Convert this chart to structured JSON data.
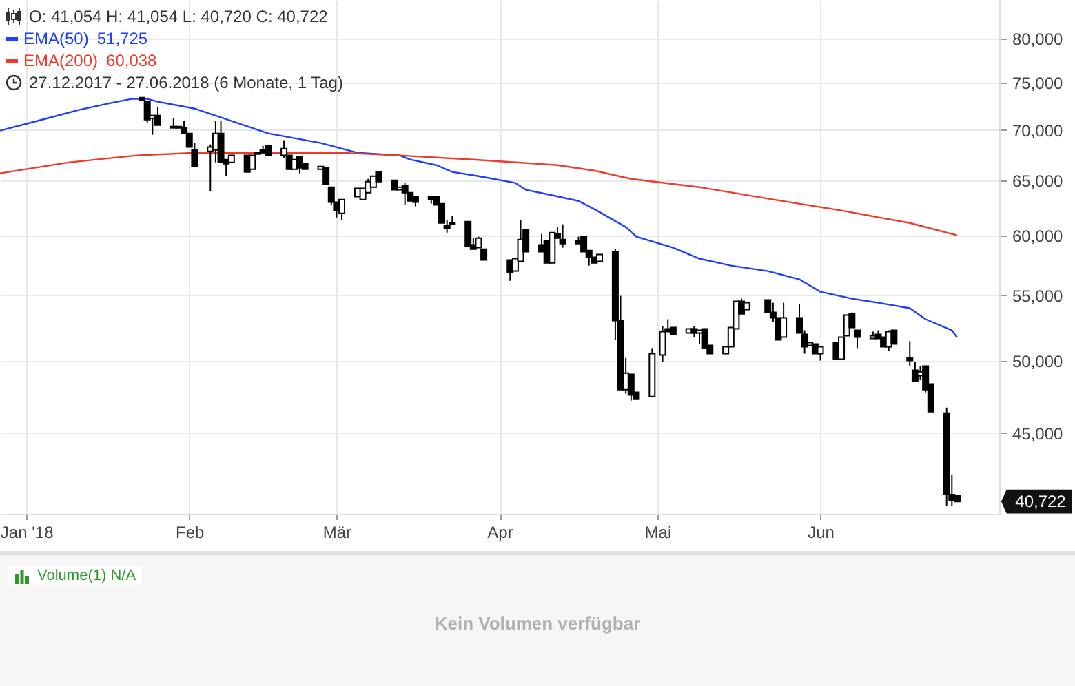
{
  "chart_data": {
    "type": "candlestick",
    "log": "y",
    "grid": true,
    "legend": "top left",
    "xlim": [
      "2017-12-27",
      "2018-07-05"
    ],
    "xticks": [
      {
        "value": "2018-01-01",
        "label": "Jan '18"
      },
      {
        "value": "2018-02-01",
        "label": "Feb"
      },
      {
        "value": "2018-03-01",
        "label": "Mär"
      },
      {
        "value": "2018-04-01",
        "label": "Apr"
      },
      {
        "value": "2018-05-01",
        "label": "Mai"
      },
      {
        "value": "2018-06-01",
        "label": "Jun"
      }
    ],
    "ylim": [
      40000,
      84600
    ],
    "yticks": [
      {
        "value": 45000,
        "label": "45,000"
      },
      {
        "value": 50000,
        "label": "50,000"
      },
      {
        "value": 55000,
        "label": "55,000"
      },
      {
        "value": 60000,
        "label": "60,000"
      },
      {
        "value": 65000,
        "label": "65,000"
      },
      {
        "value": 70000,
        "label": "70,000"
      },
      {
        "value": 75000,
        "label": "75,000"
      },
      {
        "value": 80000,
        "label": "80,000"
      }
    ],
    "x": [
      "2018-01-23",
      "2018-01-24",
      "2018-01-25",
      "2018-01-26",
      "2018-01-29",
      "2018-01-30",
      "2018-01-31",
      "2018-02-01",
      "2018-02-02",
      "2018-02-05",
      "2018-02-06",
      "2018-02-07",
      "2018-02-08",
      "2018-02-09",
      "2018-02-12",
      "2018-02-13",
      "2018-02-14",
      "2018-02-15",
      "2018-02-16",
      "2018-02-19",
      "2018-02-20",
      "2018-02-21",
      "2018-02-22",
      "2018-02-23",
      "2018-02-26",
      "2018-02-27",
      "2018-02-28",
      "2018-03-01",
      "2018-03-02",
      "2018-03-05",
      "2018-03-06",
      "2018-03-07",
      "2018-03-08",
      "2018-03-09",
      "2018-03-12",
      "2018-03-13",
      "2018-03-14",
      "2018-03-15",
      "2018-03-16",
      "2018-03-19",
      "2018-03-20",
      "2018-03-21",
      "2018-03-22",
      "2018-03-23",
      "2018-03-26",
      "2018-03-27",
      "2018-03-28",
      "2018-03-29",
      "2018-04-03",
      "2018-04-04",
      "2018-04-05",
      "2018-04-06",
      "2018-04-09",
      "2018-04-10",
      "2018-04-11",
      "2018-04-12",
      "2018-04-13",
      "2018-04-16",
      "2018-04-17",
      "2018-04-18",
      "2018-04-19",
      "2018-04-20",
      "2018-04-23",
      "2018-04-24",
      "2018-04-25",
      "2018-04-26",
      "2018-04-27",
      "2018-04-30",
      "2018-05-02",
      "2018-05-03",
      "2018-05-04",
      "2018-05-07",
      "2018-05-08",
      "2018-05-09",
      "2018-05-10",
      "2018-05-11",
      "2018-05-14",
      "2018-05-15",
      "2018-05-16",
      "2018-05-17",
      "2018-05-18",
      "2018-05-22",
      "2018-05-23",
      "2018-05-24",
      "2018-05-25",
      "2018-05-28",
      "2018-05-29",
      "2018-05-30",
      "2018-05-31",
      "2018-06-01",
      "2018-06-04",
      "2018-06-05",
      "2018-06-06",
      "2018-06-07",
      "2018-06-08",
      "2018-06-11",
      "2018-06-12",
      "2018-06-13",
      "2018-06-14",
      "2018-06-15",
      "2018-06-18",
      "2018-06-19",
      "2018-06-20",
      "2018-06-21",
      "2018-06-22",
      "2018-06-25",
      "2018-06-26",
      "2018-06-27"
    ],
    "ohlc": [
      [
        73380,
        73380,
        73090,
        73090
      ],
      [
        72950,
        72950,
        70770,
        71060
      ],
      [
        71200,
        71490,
        69510,
        71490
      ],
      [
        71490,
        72360,
        70490,
        70490
      ],
      [
        70350,
        71200,
        70210,
        70210
      ],
      [
        70350,
        70350,
        70210,
        70210
      ],
      [
        70210,
        70920,
        69650,
        69650
      ],
      [
        69650,
        69650,
        68270,
        68270
      ],
      [
        67990,
        68680,
        66370,
        66370
      ],
      [
        67850,
        68540,
        64020,
        68270
      ],
      [
        67990,
        70920,
        66770,
        69650
      ],
      [
        69650,
        70920,
        66770,
        66770
      ],
      [
        67040,
        67040,
        65440,
        66640
      ],
      [
        66770,
        67450,
        66770,
        67450
      ],
      [
        67450,
        67450,
        65840,
        65840
      ],
      [
        66100,
        67450,
        66100,
        67450
      ],
      [
        67710,
        67710,
        67580,
        67580
      ],
      [
        67990,
        68400,
        67710,
        67710
      ],
      [
        68400,
        68400,
        67450,
        67450
      ],
      [
        67450,
        68960,
        67180,
        68130
      ],
      [
        67450,
        67450,
        66100,
        66100
      ],
      [
        66100,
        67040,
        66100,
        67040
      ],
      [
        67310,
        67310,
        65710,
        66240
      ],
      [
        66640,
        66640,
        66100,
        66100
      ],
      [
        66100,
        66370,
        66100,
        66370
      ],
      [
        66240,
        66240,
        64660,
        64660
      ],
      [
        64400,
        64400,
        62750,
        63000
      ],
      [
        63000,
        63000,
        61620,
        62240
      ],
      [
        61990,
        63250,
        61370,
        63250
      ],
      [
        63510,
        64280,
        63510,
        64280
      ],
      [
        63250,
        64280,
        63250,
        64280
      ],
      [
        63890,
        65180,
        63890,
        64920
      ],
      [
        64400,
        65440,
        64400,
        65440
      ],
      [
        65840,
        65840,
        64920,
        64920
      ],
      [
        65050,
        65050,
        64150,
        64150
      ],
      [
        64150,
        64400,
        64150,
        64400
      ],
      [
        64530,
        64790,
        62750,
        63890
      ],
      [
        63890,
        63890,
        63120,
        63120
      ],
      [
        63510,
        63510,
        62620,
        63000
      ],
      [
        63510,
        63510,
        62870,
        63250
      ],
      [
        63510,
        63510,
        62750,
        62750
      ],
      [
        62870,
        62870,
        61120,
        61120
      ],
      [
        60880,
        61370,
        60270,
        60640
      ],
      [
        61120,
        61740,
        61000,
        61000
      ],
      [
        61250,
        61250,
        59080,
        59080
      ],
      [
        59200,
        59790,
        58840,
        58840
      ],
      [
        58960,
        59910,
        58960,
        59790
      ],
      [
        58840,
        58840,
        57910,
        57910
      ],
      [
        57910,
        57910,
        56180,
        56870
      ],
      [
        56980,
        58020,
        56980,
        58020
      ],
      [
        57790,
        61370,
        57790,
        59670
      ],
      [
        60520,
        60520,
        58610,
        58610
      ],
      [
        59200,
        60150,
        58610,
        58610
      ],
      [
        59550,
        59550,
        57670,
        57670
      ],
      [
        57670,
        60270,
        57670,
        60270
      ],
      [
        60150,
        60760,
        59790,
        59790
      ],
      [
        59670,
        61000,
        58960,
        59310
      ],
      [
        59550,
        59910,
        59310,
        59310
      ],
      [
        59910,
        59910,
        58610,
        58610
      ],
      [
        58720,
        58720,
        57440,
        58140
      ],
      [
        58140,
        58140,
        57670,
        57670
      ],
      [
        57790,
        58370,
        57790,
        58370
      ],
      [
        58610,
        58840,
        51540,
        53010
      ],
      [
        53010,
        54960,
        47940,
        47940
      ],
      [
        47940,
        50210,
        47650,
        49110
      ],
      [
        49020,
        49020,
        47180,
        47560
      ],
      [
        47750,
        47750,
        47270,
        47270
      ],
      [
        47460,
        50930,
        47460,
        50520
      ],
      [
        50420,
        52590,
        49910,
        52170
      ],
      [
        52380,
        53120,
        52170,
        52170
      ],
      [
        52480,
        52480,
        51960,
        51960
      ],
      [
        52060,
        52380,
        52060,
        52380
      ],
      [
        52380,
        52590,
        51750,
        52060
      ],
      [
        52060,
        52270,
        51230,
        52270
      ],
      [
        52380,
        52380,
        50930,
        50930
      ],
      [
        51130,
        51130,
        50520,
        50520
      ],
      [
        50520,
        51030,
        50520,
        51030
      ],
      [
        51030,
        52480,
        51030,
        52480
      ],
      [
        52380,
        54520,
        52380,
        54520
      ],
      [
        54520,
        54740,
        53540,
        53540
      ],
      [
        53870,
        54410,
        53870,
        54410
      ],
      [
        54630,
        54630,
        53650,
        53650
      ],
      [
        53650,
        54410,
        52900,
        53220
      ],
      [
        53220,
        53220,
        51540,
        51540
      ],
      [
        51750,
        54410,
        51750,
        53220
      ],
      [
        53220,
        54300,
        52060,
        52060
      ],
      [
        51960,
        52270,
        50520,
        51030
      ],
      [
        51130,
        51340,
        51130,
        51340
      ],
      [
        51230,
        51230,
        50520,
        50520
      ],
      [
        50520,
        51030,
        50010,
        51030
      ],
      [
        51340,
        51340,
        50110,
        50110
      ],
      [
        50110,
        51750,
        50110,
        51750
      ],
      [
        51850,
        53440,
        51850,
        53440
      ],
      [
        53540,
        53650,
        52480,
        52480
      ],
      [
        52270,
        52270,
        50930,
        51750
      ],
      [
        51650,
        52170,
        51650,
        51850
      ],
      [
        51960,
        52270,
        51650,
        51650
      ],
      [
        51750,
        51750,
        51030,
        51030
      ],
      [
        51030,
        52270,
        50720,
        52170
      ],
      [
        52270,
        52270,
        51230,
        51230
      ],
      [
        50210,
        51440,
        49610,
        50010
      ],
      [
        49310,
        49910,
        48530,
        48530
      ],
      [
        48920,
        49610,
        48630,
        49210
      ],
      [
        49610,
        49610,
        47750,
        47940
      ],
      [
        48330,
        48330,
        46420,
        46420
      ],
      [
        46330,
        46700,
        40480,
        41140
      ],
      [
        41140,
        42340,
        40480,
        40800
      ],
      [
        41054,
        41054,
        40720,
        40722
      ]
    ],
    "series": [
      {
        "name": "EMA(50)",
        "type": "line",
        "color": "#1f3fff",
        "x": [
          "2017-12-27",
          "2018-01-01",
          "2018-01-06",
          "2018-01-11",
          "2018-01-17",
          "2018-01-21",
          "2018-01-24",
          "2018-01-26",
          "2018-02-02",
          "2018-02-09",
          "2018-02-16",
          "2018-02-26",
          "2018-03-05",
          "2018-03-13",
          "2018-03-15",
          "2018-03-20",
          "2018-03-23",
          "2018-03-28",
          "2018-04-04",
          "2018-04-06",
          "2018-04-11",
          "2018-04-16",
          "2018-04-19",
          "2018-04-25",
          "2018-04-27",
          "2018-05-04",
          "2018-05-09",
          "2018-05-15",
          "2018-05-22",
          "2018-05-28",
          "2018-06-01",
          "2018-06-07",
          "2018-06-12",
          "2018-06-18",
          "2018-06-21",
          "2018-06-26",
          "2018-06-27"
        ],
        "values": [
          69930,
          70630,
          71340,
          72070,
          72800,
          73240,
          73240,
          72950,
          72210,
          70920,
          69650,
          68680,
          67710,
          67450,
          67040,
          66500,
          65840,
          65440,
          64790,
          64150,
          63640,
          63120,
          62370,
          60760,
          59910,
          58960,
          58020,
          57440,
          56980,
          56300,
          55290,
          54740,
          54410,
          53980,
          53120,
          52270,
          51725
        ]
      },
      {
        "name": "EMA(200)",
        "type": "line",
        "color": "#f03a2a",
        "x": [
          "2017-12-27",
          "2018-01-09",
          "2018-01-22",
          "2018-02-02",
          "2018-02-16",
          "2018-03-02",
          "2018-03-13",
          "2018-03-27",
          "2018-04-12",
          "2018-04-19",
          "2018-04-26",
          "2018-05-09",
          "2018-05-23",
          "2018-06-05",
          "2018-06-18",
          "2018-06-27"
        ],
        "values": [
          65710,
          66760,
          67450,
          67710,
          67710,
          67710,
          67450,
          67040,
          66500,
          65970,
          65180,
          64400,
          63250,
          62240,
          61120,
          60038
        ]
      }
    ],
    "annotations": [
      "O: 41,054  H: 41,054  L: 40,720  C: 40,722",
      "51,725",
      "60,038",
      "27.12.2017 - 27.06.2018   (6 Monate, 1 Tag)",
      "Volume(1)  N/A",
      "Kein Volumen verfügbar",
      "40,722"
    ]
  }
}
